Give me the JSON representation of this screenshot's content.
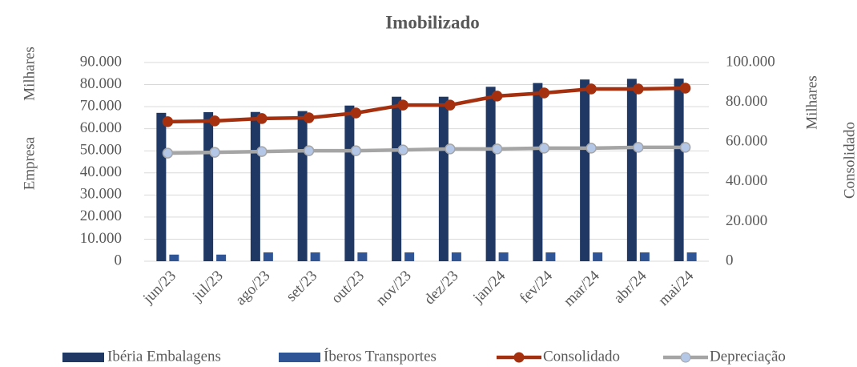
{
  "chart_data": {
    "type": "bar",
    "title": "Imobilizado",
    "y_label": "Empresa",
    "y_unit": "Milhares",
    "y2_label": "Consolidado",
    "y2_unit": "Milhares",
    "categories": [
      "jun/23",
      "jul/23",
      "ago/23",
      "set/23",
      "out/23",
      "nov/23",
      "dez/23",
      "jan/24",
      "fev/24",
      "mar/24",
      "abr/24",
      "mai/24"
    ],
    "series": [
      {
        "name": "Ibéria Embalagens",
        "type": "bar",
        "color": "#1f3864",
        "values": [
          67200,
          67500,
          67600,
          68000,
          70500,
          74500,
          74500,
          79000,
          80700,
          82300,
          82600,
          82700
        ]
      },
      {
        "name": "Íberos Transportes",
        "type": "bar",
        "color": "#2f5597",
        "values": [
          3000,
          3000,
          4000,
          4000,
          4000,
          4000,
          4000,
          4000,
          4000,
          4000,
          4000,
          4000
        ]
      },
      {
        "name": "Consolidado",
        "type": "line",
        "axis": "y2",
        "color": "#a5300f",
        "values": [
          70200,
          70600,
          71800,
          72200,
          74600,
          78600,
          78600,
          83100,
          84700,
          86700,
          86700,
          87100
        ]
      },
      {
        "name": "Depreciação",
        "type": "line",
        "axis": "y2",
        "color": "#a5a5a5",
        "marker_fill": "#b4c7e7",
        "values": [
          54400,
          54800,
          55200,
          55600,
          55600,
          56000,
          56500,
          56500,
          56900,
          56900,
          57300,
          57300
        ]
      }
    ],
    "ylim": [
      0,
      90000
    ],
    "yticks": [
      0,
      {
        "value": 10000,
        "label": "10.000"
      },
      {
        "value": 20000,
        "label": "20.000"
      },
      {
        "value": 30000,
        "label": "30.000"
      },
      {
        "value": 40000,
        "label": "40.000"
      },
      {
        "value": 50000,
        "label": "50.000"
      },
      {
        "value": 60000,
        "label": "60.000"
      },
      {
        "value": 70000,
        "label": "70.000"
      },
      {
        "value": 80000,
        "label": "80.000"
      },
      {
        "value": 90000,
        "label": "90.000"
      }
    ],
    "y2lim": [
      0,
      100000
    ],
    "y2ticks": [
      0,
      {
        "value": 20000,
        "label": "20.000"
      },
      {
        "value": 40000,
        "label": "40.000"
      },
      {
        "value": 60000,
        "label": "60.000"
      },
      {
        "value": 80000,
        "label": "80.000"
      },
      {
        "value": 100000,
        "label": "100.000"
      }
    ],
    "grid": true
  }
}
